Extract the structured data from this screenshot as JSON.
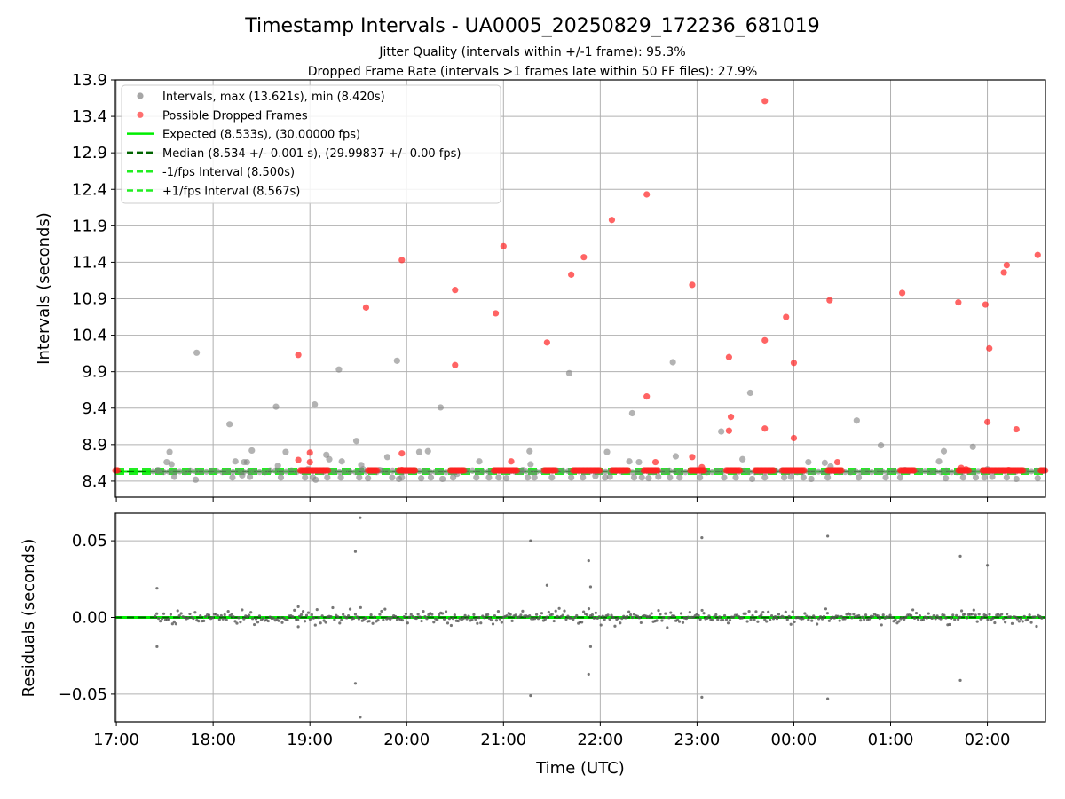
{
  "chart_data": {
    "type": "scatter",
    "title": "Timestamp Intervals - UA0005_20250829_172236_681019",
    "subtitle_lines": [
      "Jitter Quality (intervals within +/-1 frame): 95.3%",
      "Dropped Frame Rate (intervals >1 frames late within 50 FF files): 27.9%"
    ],
    "xlabel": "Time (UTC)",
    "x_ticks": [
      "17:00",
      "18:00",
      "19:00",
      "20:00",
      "21:00",
      "22:00",
      "23:00",
      "00:00",
      "01:00",
      "02:00"
    ],
    "x_tick_hours": [
      17,
      18,
      19,
      20,
      21,
      22,
      23,
      24,
      25,
      26
    ],
    "xlim_hours": [
      16.99,
      26.6
    ],
    "top_panel": {
      "ylabel": "Intervals (seconds)",
      "ylim": [
        8.18,
        13.9
      ],
      "y_ticks": [
        "8.4",
        "8.9",
        "9.4",
        "9.9",
        "10.4",
        "10.9",
        "11.4",
        "11.9",
        "12.4",
        "12.9",
        "13.4",
        "13.9"
      ],
      "y_tick_values": [
        8.4,
        8.9,
        9.4,
        9.9,
        10.4,
        10.9,
        11.4,
        11.9,
        12.4,
        12.9,
        13.4,
        13.9
      ],
      "legend": [
        {
          "label": "Intervals, max (13.621s), min (8.420s)",
          "kind": "marker",
          "color": "#808080"
        },
        {
          "label": "Possible Dropped Frames",
          "kind": "marker",
          "color": "#ff3333"
        },
        {
          "label": "Expected (8.533s), (30.00000 fps)",
          "kind": "solid",
          "color": "#00ee00"
        },
        {
          "label": "Median (8.534 +/- 0.001 s), (29.99837 +/- 0.00 fps)",
          "kind": "dashed",
          "color": "#006400"
        },
        {
          "label": "-1/fps Interval (8.500s)",
          "kind": "dashed",
          "color": "#22ee22"
        },
        {
          "label": "+1/fps Interval (8.567s)",
          "kind": "dashed",
          "color": "#22ee22"
        }
      ],
      "expected": 8.533,
      "median": 8.534,
      "minus_interval": 8.5,
      "plus_interval": 8.567,
      "grey_points": [
        [
          17.43,
          8.55
        ],
        [
          17.52,
          8.66
        ],
        [
          17.55,
          8.8
        ],
        [
          17.57,
          8.63
        ],
        [
          17.6,
          8.46
        ],
        [
          17.82,
          8.42
        ],
        [
          17.83,
          10.16
        ],
        [
          18.17,
          9.18
        ],
        [
          18.2,
          8.45
        ],
        [
          18.23,
          8.67
        ],
        [
          18.3,
          8.48
        ],
        [
          18.32,
          8.66
        ],
        [
          18.35,
          8.66
        ],
        [
          18.38,
          8.46
        ],
        [
          18.4,
          8.82
        ],
        [
          18.65,
          9.42
        ],
        [
          18.67,
          8.61
        ],
        [
          18.7,
          8.45
        ],
        [
          18.75,
          8.8
        ],
        [
          18.95,
          8.45
        ],
        [
          18.98,
          8.56
        ],
        [
          19.03,
          8.45
        ],
        [
          19.05,
          9.45
        ],
        [
          19.06,
          8.42
        ],
        [
          19.17,
          8.76
        ],
        [
          19.18,
          8.45
        ],
        [
          19.2,
          8.7
        ],
        [
          19.3,
          9.93
        ],
        [
          19.32,
          8.45
        ],
        [
          19.33,
          8.67
        ],
        [
          19.48,
          8.95
        ],
        [
          19.51,
          8.45
        ],
        [
          19.53,
          8.62
        ],
        [
          19.55,
          8.56
        ],
        [
          19.6,
          8.44
        ],
        [
          19.72,
          8.55
        ],
        [
          19.8,
          8.73
        ],
        [
          19.85,
          8.45
        ],
        [
          19.9,
          10.05
        ],
        [
          19.92,
          8.43
        ],
        [
          19.95,
          8.45
        ],
        [
          20.13,
          8.8
        ],
        [
          20.15,
          8.44
        ],
        [
          20.22,
          8.81
        ],
        [
          20.25,
          8.45
        ],
        [
          20.35,
          9.41
        ],
        [
          20.37,
          8.43
        ],
        [
          20.48,
          8.45
        ],
        [
          20.52,
          8.5
        ],
        [
          20.72,
          8.45
        ],
        [
          20.75,
          8.67
        ],
        [
          20.85,
          8.45
        ],
        [
          20.95,
          8.45
        ],
        [
          21.03,
          8.44
        ],
        [
          21.2,
          8.55
        ],
        [
          21.25,
          8.45
        ],
        [
          21.27,
          8.81
        ],
        [
          21.28,
          8.63
        ],
        [
          21.32,
          8.45
        ],
        [
          21.5,
          8.45
        ],
        [
          21.68,
          9.88
        ],
        [
          21.7,
          8.45
        ],
        [
          21.82,
          8.45
        ],
        [
          21.95,
          8.47
        ],
        [
          22.05,
          8.45
        ],
        [
          22.07,
          8.8
        ],
        [
          22.1,
          8.46
        ],
        [
          22.3,
          8.67
        ],
        [
          22.33,
          9.33
        ],
        [
          22.35,
          8.45
        ],
        [
          22.4,
          8.66
        ],
        [
          22.43,
          8.45
        ],
        [
          22.5,
          8.44
        ],
        [
          22.6,
          8.46
        ],
        [
          22.72,
          8.45
        ],
        [
          22.75,
          10.03
        ],
        [
          22.78,
          8.74
        ],
        [
          22.82,
          8.45
        ],
        [
          23.03,
          8.45
        ],
        [
          23.25,
          9.08
        ],
        [
          23.28,
          8.45
        ],
        [
          23.4,
          8.45
        ],
        [
          23.47,
          8.7
        ],
        [
          23.55,
          9.61
        ],
        [
          23.57,
          8.43
        ],
        [
          23.7,
          8.45
        ],
        [
          23.9,
          8.45
        ],
        [
          23.97,
          8.46
        ],
        [
          24.1,
          8.45
        ],
        [
          24.15,
          8.66
        ],
        [
          24.18,
          8.43
        ],
        [
          24.32,
          8.65
        ],
        [
          24.35,
          8.45
        ],
        [
          24.38,
          8.6
        ],
        [
          24.65,
          9.23
        ],
        [
          24.67,
          8.45
        ],
        [
          24.9,
          8.89
        ],
        [
          24.95,
          8.45
        ],
        [
          25.1,
          8.45
        ],
        [
          25.15,
          8.55
        ],
        [
          25.5,
          8.67
        ],
        [
          25.55,
          8.81
        ],
        [
          25.57,
          8.44
        ],
        [
          25.75,
          8.45
        ],
        [
          25.85,
          8.87
        ],
        [
          25.88,
          8.45
        ],
        [
          25.97,
          8.45
        ],
        [
          26.0,
          8.56
        ],
        [
          26.05,
          8.46
        ],
        [
          26.2,
          8.45
        ],
        [
          26.3,
          8.43
        ],
        [
          26.52,
          8.44
        ]
      ],
      "red_points": [
        [
          18.88,
          10.13
        ],
        [
          18.88,
          8.69
        ],
        [
          19.0,
          8.79
        ],
        [
          19.0,
          8.66
        ],
        [
          19.58,
          10.78
        ],
        [
          19.95,
          11.43
        ],
        [
          19.95,
          8.78
        ],
        [
          20.5,
          11.02
        ],
        [
          20.5,
          9.99
        ],
        [
          20.92,
          10.7
        ],
        [
          21.0,
          11.62
        ],
        [
          21.08,
          8.67
        ],
        [
          21.45,
          10.3
        ],
        [
          21.7,
          11.23
        ],
        [
          21.83,
          11.47
        ],
        [
          22.12,
          11.98
        ],
        [
          22.48,
          12.33
        ],
        [
          22.48,
          9.56
        ],
        [
          22.57,
          8.66
        ],
        [
          22.95,
          11.09
        ],
        [
          22.95,
          8.73
        ],
        [
          23.05,
          8.59
        ],
        [
          23.33,
          10.1
        ],
        [
          23.35,
          9.28
        ],
        [
          23.33,
          9.09
        ],
        [
          23.7,
          13.61
        ],
        [
          23.7,
          10.33
        ],
        [
          23.7,
          9.12
        ],
        [
          23.92,
          10.65
        ],
        [
          24.0,
          10.02
        ],
        [
          24.0,
          8.99
        ],
        [
          24.37,
          10.88
        ],
        [
          24.45,
          8.66
        ],
        [
          25.12,
          10.98
        ],
        [
          25.7,
          10.85
        ],
        [
          25.98,
          10.82
        ],
        [
          26.02,
          10.22
        ],
        [
          26.0,
          9.21
        ],
        [
          26.17,
          11.26
        ],
        [
          26.2,
          11.36
        ],
        [
          26.3,
          9.11
        ],
        [
          26.52,
          11.5
        ],
        [
          25.78,
          8.56
        ],
        [
          25.73,
          8.58
        ],
        [
          19.95,
          8.55
        ],
        [
          26.22,
          8.55
        ]
      ],
      "red_baseline_clusters": [
        [
          16.99,
          17.02
        ],
        [
          18.9,
          19.2
        ],
        [
          19.6,
          19.7
        ],
        [
          19.92,
          20.1
        ],
        [
          20.45,
          20.6
        ],
        [
          20.9,
          21.15
        ],
        [
          21.42,
          21.55
        ],
        [
          21.72,
          22.0
        ],
        [
          22.12,
          22.3
        ],
        [
          22.45,
          22.6
        ],
        [
          22.93,
          23.08
        ],
        [
          23.3,
          23.45
        ],
        [
          23.6,
          23.8
        ],
        [
          23.88,
          24.12
        ],
        [
          24.35,
          24.5
        ],
        [
          25.1,
          25.25
        ],
        [
          25.7,
          25.82
        ],
        [
          25.95,
          26.38
        ],
        [
          26.55,
          26.6
        ]
      ]
    },
    "bottom_panel": {
      "ylabel": "Residuals (seconds)",
      "ylim": [
        -0.068,
        0.068
      ],
      "y_ticks": [
        "0.05",
        "0.00",
        "−0.05"
      ],
      "y_tick_values": [
        0.05,
        0.0,
        -0.05
      ],
      "outliers": [
        [
          17.42,
          0.019
        ],
        [
          17.42,
          -0.019
        ],
        [
          18.88,
          0.007
        ],
        [
          18.88,
          -0.006
        ],
        [
          19.47,
          0.043
        ],
        [
          19.47,
          -0.043
        ],
        [
          19.52,
          0.065
        ],
        [
          19.52,
          -0.065
        ],
        [
          21.28,
          0.05
        ],
        [
          21.28,
          -0.051
        ],
        [
          21.45,
          0.021
        ],
        [
          21.88,
          0.037
        ],
        [
          21.9,
          0.02
        ],
        [
          21.9,
          -0.019
        ],
        [
          21.88,
          -0.037
        ],
        [
          23.05,
          0.052
        ],
        [
          23.05,
          -0.052
        ],
        [
          24.35,
          0.053
        ],
        [
          24.35,
          -0.053
        ],
        [
          25.72,
          0.04
        ],
        [
          25.72,
          -0.041
        ],
        [
          26.0,
          0.034
        ]
      ]
    }
  }
}
